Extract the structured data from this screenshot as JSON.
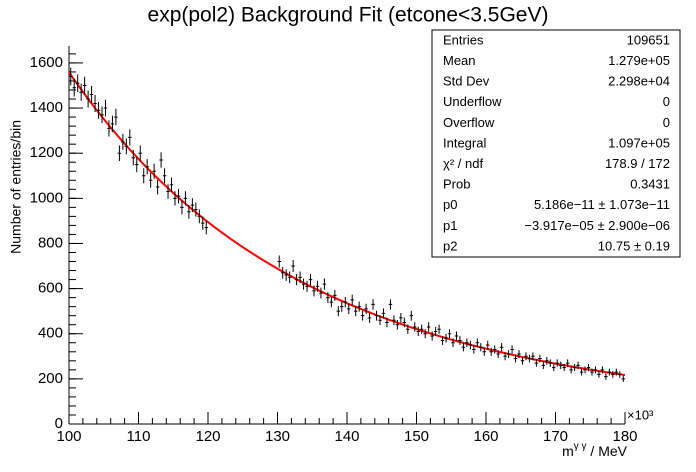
{
  "chart_data": {
    "type": "histogram-fit",
    "title": "exp(pol2) Background Fit (etcone<3.5GeV)",
    "y_label": "Number of entries/bin",
    "x_label": {
      "base": "m",
      "sup": "γ γ",
      "rest": " / MeV"
    },
    "x_exponent": "×10³",
    "x_scale": 1000,
    "bin_width": 0.5,
    "x": [
      100.25,
      100.75,
      101.25,
      101.75,
      102.25,
      102.75,
      103.25,
      103.75,
      104.25,
      104.75,
      105.25,
      105.75,
      106.25,
      106.75,
      107.25,
      107.75,
      108.25,
      108.75,
      109.25,
      109.75,
      110.25,
      110.75,
      111.25,
      111.75,
      112.25,
      112.75,
      113.25,
      113.75,
      114.25,
      114.75,
      115.25,
      115.75,
      116.25,
      116.75,
      117.25,
      117.75,
      118.25,
      118.75,
      119.25,
      119.75,
      130.25,
      130.75,
      131.25,
      131.75,
      132.25,
      132.75,
      133.25,
      133.75,
      134.25,
      134.75,
      135.25,
      135.75,
      136.25,
      136.75,
      137.25,
      137.75,
      138.25,
      138.75,
      139.25,
      139.75,
      140.25,
      140.75,
      141.25,
      141.75,
      142.25,
      142.75,
      143.25,
      143.75,
      144.25,
      144.75,
      145.25,
      145.75,
      146.25,
      146.75,
      147.25,
      147.75,
      148.25,
      148.75,
      149.25,
      149.75,
      150.25,
      150.75,
      151.25,
      151.75,
      152.25,
      152.75,
      153.25,
      153.75,
      154.25,
      154.75,
      155.25,
      155.75,
      156.25,
      156.75,
      157.25,
      157.75,
      158.25,
      158.75,
      159.25,
      159.75,
      160.25,
      160.75,
      161.25,
      161.75,
      162.25,
      162.75,
      163.25,
      163.75,
      164.25,
      164.75,
      165.25,
      165.75,
      166.25,
      166.75,
      167.25,
      167.75,
      168.25,
      168.75,
      169.25,
      169.75,
      170.25,
      170.75,
      171.25,
      171.75,
      172.25,
      172.75,
      173.25,
      173.75,
      174.25,
      174.75,
      175.25,
      175.75,
      176.25,
      176.75,
      177.25,
      177.75,
      178.25,
      178.75,
      179.25,
      179.75
    ],
    "series": [
      {
        "color": "#000000",
        "values": [
          1540,
          1490,
          1510,
          1470,
          1500,
          1440,
          1460,
          1420,
          1390,
          1370,
          1400,
          1310,
          1330,
          1360,
          1200,
          1250,
          1230,
          1270,
          1180,
          1150,
          1200,
          1100,
          1140,
          1080,
          1120,
          1050,
          1170,
          1100,
          1030,
          1060,
          1000,
          1010,
          960,
          1000,
          940,
          970,
          950,
          920,
          890,
          870,
          720,
          670,
          660,
          650,
          700,
          640,
          650,
          620,
          610,
          640,
          590,
          610,
          580,
          620,
          560,
          540,
          570,
          500,
          520,
          540,
          510,
          550,
          500,
          520,
          480,
          510,
          470,
          530,
          480,
          460,
          490,
          450,
          530,
          460,
          440,
          470,
          450,
          420,
          480,
          430,
          410,
          420,
          400,
          430,
          390,
          410,
          420,
          370,
          380,
          400,
          360,
          390,
          370,
          340,
          360,
          350,
          330,
          360,
          340,
          320,
          350,
          320,
          330,
          310,
          340,
          300,
          310,
          330,
          290,
          310,
          280,
          300,
          290,
          300,
          270,
          290,
          260,
          280,
          270,
          250,
          270,
          260,
          250,
          270,
          240,
          250,
          260,
          230,
          240,
          250,
          230,
          240,
          220,
          240,
          210,
          230,
          220,
          230,
          220,
          200
        ]
      }
    ],
    "fit_color": "#ff0000",
    "xlim": [
      100,
      180
    ],
    "xticks": [
      100,
      110,
      120,
      130,
      140,
      150,
      160,
      170,
      180
    ],
    "ylim": [
      0,
      1675
    ],
    "yticks": [
      0,
      200,
      400,
      600,
      800,
      1000,
      1200,
      1400,
      1600
    ],
    "stats": [
      {
        "label": "Entries",
        "value": 109651
      },
      {
        "label": "Mean",
        "value": 127900,
        "value_label": "1.279e+05"
      },
      {
        "label": "Std Dev",
        "value": 22980,
        "value_label": "2.298e+04"
      },
      {
        "label": "Underflow",
        "value": 0
      },
      {
        "label": "Overflow",
        "value": 0
      },
      {
        "label": "Integral",
        "value": 109700,
        "value_label": "1.097e+05"
      },
      {
        "label": "χ² / ndf",
        "value_label": "178.9 / 172"
      },
      {
        "label": "Prob",
        "value": 0.3431
      },
      {
        "label": "p0",
        "value": 5.186e-11,
        "error": 1.073e-11,
        "value_label": "5.186e−11 ± 1.073e−11"
      },
      {
        "label": "p1",
        "value": -3.917e-05,
        "error": 2.9e-06,
        "value_label": "−3.917e−05 ± 2.900e−06"
      },
      {
        "label": "p2",
        "value": 10.75,
        "error": 0.19,
        "value_label": "10.75 ± 0.19"
      }
    ]
  }
}
